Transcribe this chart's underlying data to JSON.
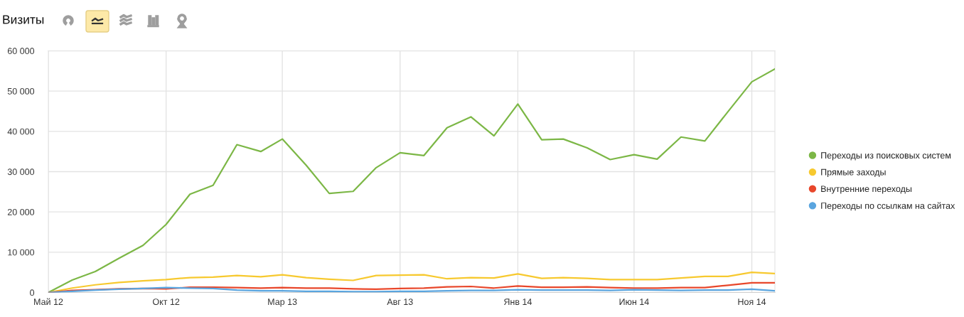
{
  "chart_data": {
    "type": "line",
    "title": "Визиты",
    "x": [
      "2012-05",
      "2012-06",
      "2012-07",
      "2012-08",
      "2012-09",
      "2012-10",
      "2012-11",
      "2012-12",
      "2013-01",
      "2013-02",
      "2013-03",
      "2013-04",
      "2013-05",
      "2013-06",
      "2013-07",
      "2013-08",
      "2013-09",
      "2013-10",
      "2013-11",
      "2013-12",
      "2014-01",
      "2014-02",
      "2014-03",
      "2014-04",
      "2014-05",
      "2014-06",
      "2014-07",
      "2014-08",
      "2014-09",
      "2014-10",
      "2014-11",
      "2014-12"
    ],
    "xlim": [
      "2012-05",
      "2014-12"
    ],
    "xticks": [
      {
        "value": "2012-05",
        "label": "Май 12"
      },
      {
        "value": "2012-10",
        "label": "Окт 12"
      },
      {
        "value": "2013-03",
        "label": "Мар 13"
      },
      {
        "value": "2013-08",
        "label": "Авг 13"
      },
      {
        "value": "2014-01",
        "label": "Янв 14"
      },
      {
        "value": "2014-06",
        "label": "Июн 14"
      },
      {
        "value": "2014-11",
        "label": "Ноя 14"
      }
    ],
    "ylim": [
      0,
      60000
    ],
    "yticks": [
      0,
      {
        "value": 10000,
        "label": "10 000"
      },
      {
        "value": 20000,
        "label": "20 000"
      },
      {
        "value": 30000,
        "label": "30 000"
      },
      {
        "value": 40000,
        "label": "40 000"
      },
      {
        "value": 50000,
        "label": "50 000"
      },
      {
        "value": 60000,
        "label": "60 000"
      }
    ],
    "grid": true,
    "legend": "right",
    "series": [
      {
        "name": "Переходы из поисковых систем",
        "color": "#7cb746",
        "values": [
          0,
          3100,
          5200,
          8500,
          11700,
          16900,
          24400,
          26600,
          36700,
          35000,
          38100,
          31600,
          24600,
          25100,
          31000,
          34700,
          34000,
          40900,
          43600,
          38900,
          46800,
          37900,
          38100,
          35900,
          33000,
          34200,
          33100,
          38600,
          37600,
          44900,
          52300,
          55500
        ]
      },
      {
        "name": "Прямые заходы",
        "color": "#f7c92f",
        "values": [
          0,
          1100,
          1900,
          2500,
          2900,
          3200,
          3700,
          3800,
          4200,
          3900,
          4400,
          3700,
          3300,
          3000,
          4200,
          4300,
          4400,
          3400,
          3700,
          3600,
          4600,
          3500,
          3700,
          3500,
          3200,
          3200,
          3200,
          3600,
          4000,
          4000,
          5000,
          4700
        ]
      },
      {
        "name": "Внутренние переходы",
        "color": "#e8472b",
        "values": [
          0,
          500,
          700,
          900,
          1000,
          900,
          1300,
          1300,
          1200,
          1100,
          1200,
          1100,
          1100,
          900,
          800,
          1000,
          1100,
          1400,
          1500,
          1100,
          1600,
          1300,
          1300,
          1400,
          1200,
          1100,
          1100,
          1200,
          1200,
          1800,
          2400,
          2400
        ]
      },
      {
        "name": "Переходы по ссылкам на сайтах",
        "color": "#5aa5df",
        "values": [
          0,
          300,
          600,
          800,
          1000,
          1200,
          1100,
          1000,
          600,
          400,
          400,
          300,
          300,
          200,
          200,
          300,
          300,
          400,
          500,
          500,
          700,
          600,
          600,
          600,
          500,
          700,
          600,
          500,
          600,
          600,
          800,
          400
        ]
      }
    ]
  }
}
